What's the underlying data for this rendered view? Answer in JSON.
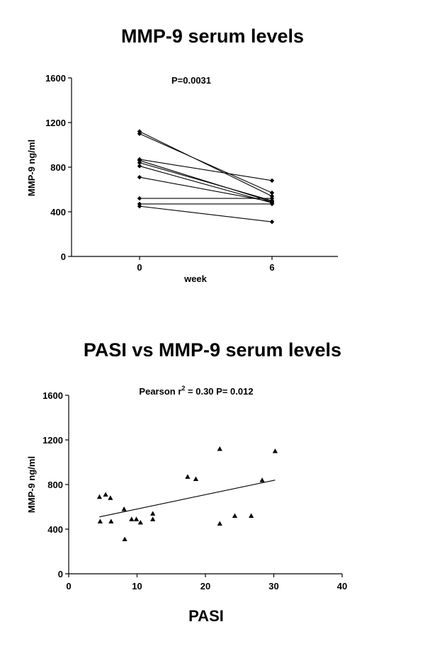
{
  "chart_data": [
    {
      "type": "line",
      "title": "MMP-9 serum levels",
      "xlabel": "week",
      "ylabel": "MMP-9 ng/ml",
      "annotation": "P=0.0031",
      "x": [
        0,
        6
      ],
      "x_tick_labels": [
        "0",
        "6"
      ],
      "ylim": [
        0,
        1600
      ],
      "y_ticks": [
        0,
        400,
        800,
        1200,
        1600
      ],
      "grid": false,
      "series": [
        {
          "values": [
            1120,
            540
          ]
        },
        {
          "values": [
            1100,
            570
          ]
        },
        {
          "values": [
            870,
            680
          ]
        },
        {
          "values": [
            860,
            490
          ]
        },
        {
          "values": [
            840,
            500
          ]
        },
        {
          "values": [
            810,
            480
          ]
        },
        {
          "values": [
            710,
            490
          ]
        },
        {
          "values": [
            520,
            520
          ]
        },
        {
          "values": [
            470,
            470
          ]
        },
        {
          "values": [
            450,
            310
          ]
        }
      ]
    },
    {
      "type": "scatter",
      "title": "PASI vs MMP-9 serum levels",
      "xlabel": "PASI",
      "ylabel": "MMP-9 ng/ml",
      "annotation_prefix": "Pearson  r",
      "annotation_sup": "2",
      "annotation_suffix": " = 0.30   P= 0.012",
      "xlim": [
        0,
        40
      ],
      "x_ticks": [
        0,
        10,
        20,
        30,
        40
      ],
      "ylim": [
        0,
        1600
      ],
      "y_ticks": [
        0,
        400,
        800,
        1200,
        1600
      ],
      "grid": false,
      "points": [
        {
          "x": 4.5,
          "y": 690
        },
        {
          "x": 4.6,
          "y": 470
        },
        {
          "x": 5.4,
          "y": 710
        },
        {
          "x": 6.1,
          "y": 680
        },
        {
          "x": 6.2,
          "y": 470
        },
        {
          "x": 8.1,
          "y": 580
        },
        {
          "x": 8.2,
          "y": 310
        },
        {
          "x": 9.2,
          "y": 490
        },
        {
          "x": 9.9,
          "y": 490
        },
        {
          "x": 10.5,
          "y": 460
        },
        {
          "x": 12.3,
          "y": 540
        },
        {
          "x": 12.3,
          "y": 490
        },
        {
          "x": 17.4,
          "y": 870
        },
        {
          "x": 18.6,
          "y": 850
        },
        {
          "x": 22.1,
          "y": 1120
        },
        {
          "x": 22.1,
          "y": 450
        },
        {
          "x": 24.3,
          "y": 520
        },
        {
          "x": 26.7,
          "y": 520
        },
        {
          "x": 28.3,
          "y": 840
        },
        {
          "x": 30.2,
          "y": 1100
        }
      ],
      "fit_line": {
        "x": [
          4.5,
          30.2
        ],
        "y": [
          510,
          840
        ]
      }
    }
  ]
}
